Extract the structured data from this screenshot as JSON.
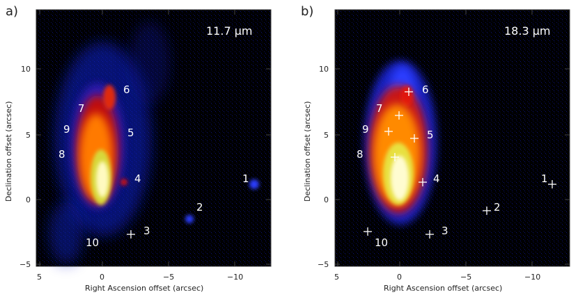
{
  "panels": [
    {
      "label": "a)",
      "wavelength": "11.7 μm",
      "xlabel": "Right Ascension offset (arcsec)",
      "ylabel": "Declination offset (arcsec)",
      "xticks": [
        "5",
        "0",
        "−5",
        "−10"
      ],
      "yticks": [
        "−5",
        "0",
        "5",
        "10"
      ],
      "sources": [
        "1",
        "2",
        "3",
        "4",
        "5",
        "6",
        "7",
        "8",
        "9",
        "10"
      ]
    },
    {
      "label": "b)",
      "wavelength": "18.3 μm",
      "xlabel": "Right Ascension offset (arcsec)",
      "ylabel": "Declination offset (arcsec)",
      "xticks": [
        "5",
        "0",
        "−5",
        "−10"
      ],
      "yticks": [
        "−5",
        "0",
        "5",
        "10"
      ],
      "sources": [
        "1",
        "2",
        "3",
        "4",
        "5",
        "6",
        "7",
        "8",
        "9",
        "10"
      ]
    }
  ],
  "colors": {
    "background": "#000000",
    "diffuse": "#1a2cff",
    "core": "#fff8a0",
    "mid": "#ff8a00",
    "outer": "#cc1a10"
  }
}
